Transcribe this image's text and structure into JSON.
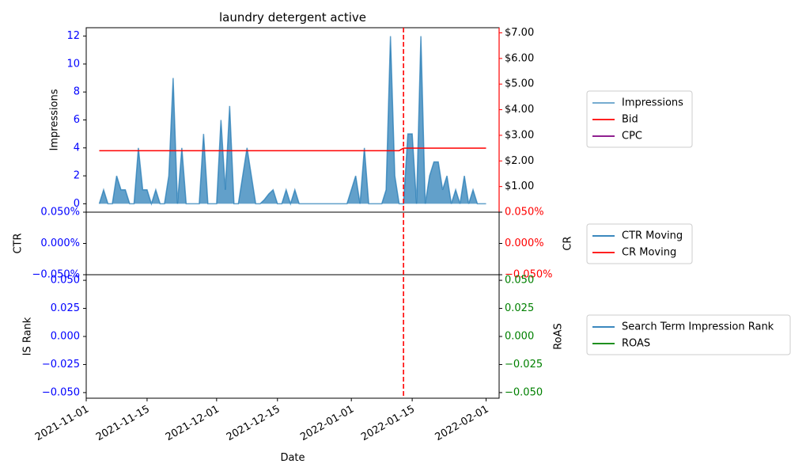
{
  "chart_data": [
    {
      "type": "area",
      "title": "laundry detergent active",
      "ylabel": "Impressions",
      "y2label": "",
      "ylim": [
        -0.6,
        12.6
      ],
      "y2lim": [
        0.0,
        7.2
      ],
      "yticks": [
        "0",
        "2",
        "4",
        "6",
        "8",
        "10",
        "12"
      ],
      "y2ticks": [
        "$1.00",
        "$2.00",
        "$3.00",
        "$4.00",
        "$5.00",
        "$6.00",
        "$7.00"
      ],
      "dates": [
        "2021-11-04",
        "2021-11-05",
        "2021-11-06",
        "2021-11-07",
        "2021-11-08",
        "2021-11-09",
        "2021-11-10",
        "2021-11-11",
        "2021-11-12",
        "2021-11-13",
        "2021-11-14",
        "2021-11-15",
        "2021-11-16",
        "2021-11-17",
        "2021-11-18",
        "2021-11-19",
        "2021-11-20",
        "2021-11-21",
        "2021-11-22",
        "2021-11-23",
        "2021-11-24",
        "2021-11-25",
        "2021-11-26",
        "2021-11-27",
        "2021-11-28",
        "2021-11-29",
        "2021-11-30",
        "2021-12-01",
        "2021-12-02",
        "2021-12-03",
        "2021-12-04",
        "2021-12-05",
        "2021-12-06",
        "2021-12-07",
        "2021-12-08",
        "2021-12-09",
        "2021-12-10",
        "2021-12-11",
        "2021-12-12",
        "2021-12-13",
        "2021-12-14",
        "2021-12-15",
        "2021-12-16",
        "2021-12-17",
        "2021-12-18",
        "2021-12-19",
        "2021-12-20",
        "2021-12-21",
        "2021-12-22",
        "2021-12-23",
        "2021-12-24",
        "2021-12-25",
        "2021-12-26",
        "2021-12-27",
        "2021-12-28",
        "2021-12-29",
        "2021-12-30",
        "2021-12-31",
        "2022-01-01",
        "2022-01-02",
        "2022-01-03",
        "2022-01-04",
        "2022-01-05",
        "2022-01-06",
        "2022-01-07",
        "2022-01-08",
        "2022-01-09",
        "2022-01-10",
        "2022-01-11",
        "2022-01-12",
        "2022-01-13",
        "2022-01-14",
        "2022-01-15",
        "2022-01-16",
        "2022-01-17",
        "2022-01-18",
        "2022-01-19",
        "2022-01-20",
        "2022-01-21",
        "2022-01-22",
        "2022-01-23",
        "2022-01-24",
        "2022-01-25",
        "2022-01-26",
        "2022-01-27",
        "2022-01-28",
        "2022-01-29",
        "2022-01-30",
        "2022-01-31",
        "2022-02-01"
      ],
      "series": [
        {
          "name": "Impressions",
          "color": "#1f77b4",
          "axis": "left",
          "values": [
            0,
            1,
            0,
            0,
            2,
            1,
            1,
            0,
            0,
            4,
            1,
            1,
            0,
            1,
            0,
            0,
            2,
            9,
            0,
            4,
            0,
            0,
            0,
            0,
            5,
            0,
            0,
            0,
            6,
            1,
            7,
            0,
            0,
            2,
            4,
            2,
            0,
            0,
            0.3,
            0.7,
            1,
            0,
            0,
            1,
            0,
            1,
            0,
            0,
            0,
            0,
            0,
            0,
            0,
            0,
            0,
            0,
            0,
            0,
            1,
            2,
            0,
            4,
            0,
            0,
            0,
            0,
            1,
            12,
            2,
            0,
            0,
            5,
            5,
            0,
            12,
            0,
            2,
            3,
            3,
            1,
            2,
            0,
            1,
            0,
            2,
            0,
            1,
            0,
            0,
            0
          ]
        },
        {
          "name": "Bid",
          "color": "#ff0000",
          "axis": "right",
          "points": [
            [
              "2021-11-04",
              2.4
            ],
            [
              "2022-01-12",
              2.4
            ],
            [
              "2022-01-13",
              2.5
            ],
            [
              "2022-02-01",
              2.5
            ]
          ]
        },
        {
          "name": "CPC",
          "color": "#800080",
          "axis": "right",
          "points": []
        }
      ],
      "legend": "right",
      "grid": false
    },
    {
      "type": "line",
      "ylabel": "CTR",
      "y2label": "CR",
      "ylim": [
        -0.05,
        0.05
      ],
      "yticks": [
        "−0.050%",
        "0.000%",
        "0.050%"
      ],
      "y2ticks": [
        "−0.050%",
        "0.000%",
        "0.050%"
      ],
      "series": [
        {
          "name": "CTR Moving",
          "color": "#1f77b4",
          "points": []
        },
        {
          "name": "CR Moving",
          "color": "#ff0000",
          "points": []
        }
      ],
      "legend": "right"
    },
    {
      "type": "line",
      "ylabel": "IS Rank",
      "y2label": "RoAS",
      "ylim": [
        -0.055,
        0.055
      ],
      "yticks": [
        "−0.050",
        "−0.025",
        "0.000",
        "0.025",
        "0.050"
      ],
      "y2ticks": [
        "−0.050",
        "−0.025",
        "0.000",
        "0.025",
        "0.050"
      ],
      "xlabel": "Date",
      "xlim": [
        "2021-11-01",
        "2022-02-04"
      ],
      "xticks": [
        "2021-11-01",
        "2021-11-15",
        "2021-12-01",
        "2021-12-15",
        "2022-01-01",
        "2022-01-15",
        "2022-02-01"
      ],
      "series": [
        {
          "name": "Search Term Impression Rank",
          "color": "#1f77b4",
          "points": []
        },
        {
          "name": "ROAS",
          "color": "#008000",
          "points": []
        }
      ],
      "legend": "right"
    }
  ],
  "marker_date": "2022-01-13",
  "marker_color": "#ff0000",
  "colors": {
    "left_ticks": "#0000ff",
    "right_ticks_top": "#000000",
    "right_spine_top": "#ff0000",
    "right_ticks_mid": "#ff0000",
    "right_ticks_bottom": "#008000"
  }
}
